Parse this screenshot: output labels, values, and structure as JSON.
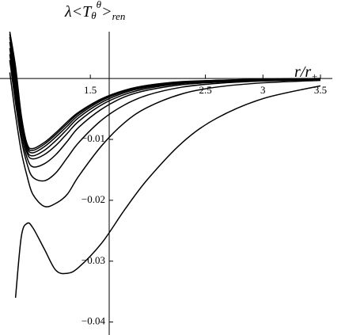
{
  "chart_data": {
    "type": "line",
    "ylabel": [
      "λ<T",
      "θ",
      "θ",
      ">",
      "ren"
    ],
    "xlabel": [
      "r/r",
      "+"
    ],
    "x": [
      0.8,
      0.85,
      0.9,
      0.95,
      1.0,
      1.1,
      1.2,
      1.3,
      1.4,
      1.6,
      1.8,
      2.0,
      2.3,
      2.6,
      3.0,
      3.5
    ],
    "series": [
      {
        "color": "#000000",
        "values": [
          null,
          -0.036,
          -0.026,
          -0.0238,
          -0.0245,
          -0.028,
          -0.0315,
          -0.032,
          -0.031,
          -0.027,
          -0.0215,
          -0.0165,
          -0.0105,
          -0.0065,
          -0.0033,
          -0.0012
        ]
      },
      {
        "color": "#000000",
        "values": [
          0.001,
          -0.006,
          -0.012,
          -0.016,
          -0.019,
          -0.021,
          -0.0205,
          -0.019,
          -0.016,
          -0.011,
          -0.0072,
          -0.0047,
          -0.0025,
          -0.0014,
          -0.0007,
          -0.0003
        ]
      },
      {
        "color": "#000000",
        "values": [
          0.003,
          -0.004,
          -0.01,
          -0.014,
          -0.0162,
          -0.0168,
          -0.0155,
          -0.013,
          -0.0105,
          -0.0068,
          -0.0043,
          -0.0027,
          -0.0014,
          -0.0008,
          -0.0004,
          -0.0002
        ]
      },
      {
        "color": "#000000",
        "values": [
          0.004,
          -0.003,
          -0.009,
          -0.013,
          -0.0145,
          -0.014,
          -0.0125,
          -0.0103,
          -0.008,
          -0.005,
          -0.003,
          -0.0019,
          -0.001,
          -0.0006,
          -0.0003,
          -0.0001
        ]
      },
      {
        "color": "#000000",
        "values": [
          0.005,
          -0.002,
          -0.008,
          -0.0122,
          -0.0132,
          -0.0125,
          -0.011,
          -0.009,
          -0.007,
          -0.0043,
          -0.0026,
          -0.0016,
          -0.0008,
          -0.0005,
          -0.0002,
          -0.0001
        ]
      },
      {
        "color": "#000000",
        "values": [
          0.006,
          -0.001,
          -0.0075,
          -0.0118,
          -0.0127,
          -0.0118,
          -0.0102,
          -0.0083,
          -0.0064,
          -0.0039,
          -0.0023,
          -0.0014,
          -0.0007,
          -0.0004,
          -0.0002,
          -0.0001
        ]
      },
      {
        "color": "#000000",
        "values": [
          0.0068,
          0.0,
          -0.007,
          -0.0113,
          -0.0122,
          -0.0112,
          -0.0096,
          -0.0078,
          -0.006,
          -0.0036,
          -0.0021,
          -0.0013,
          -0.0006,
          -0.0003,
          -0.0002,
          -0.0001
        ]
      },
      {
        "color": "#000000",
        "values": [
          0.0073,
          0.001,
          -0.0065,
          -0.011,
          -0.0118,
          -0.0108,
          -0.0092,
          -0.0074,
          -0.0057,
          -0.0034,
          -0.002,
          -0.0012,
          -0.0006,
          -0.0003,
          -0.0001,
          0.0
        ]
      },
      {
        "color": "#000000",
        "values": [
          0.0077,
          0.002,
          -0.006,
          -0.0107,
          -0.0115,
          -0.0105,
          -0.0089,
          -0.0071,
          -0.0055,
          -0.0033,
          -0.0019,
          -0.0011,
          -0.0005,
          -0.0003,
          -0.0001,
          0.0
        ]
      }
    ],
    "xlim": [
      0.77,
      3.5
    ],
    "ylim": [
      -0.042,
      0.0077
    ],
    "xticks": [
      1.5,
      2.5,
      3,
      3.5
    ],
    "yticks": [
      {
        "value": -0.01,
        "label": "−0.01"
      },
      {
        "value": -0.02,
        "label": "−0.02"
      },
      {
        "value": -0.03,
        "label": "−0.03"
      },
      {
        "value": -0.04,
        "label": "−0.04"
      }
    ],
    "yaxis_at": 1.664
  }
}
